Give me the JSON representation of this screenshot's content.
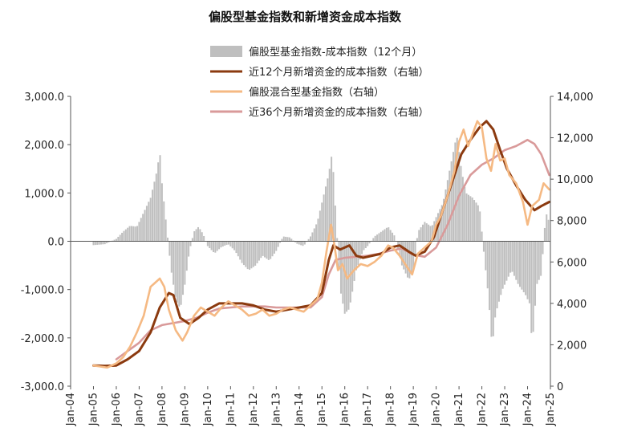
{
  "chart_data": {
    "type": "bar+line",
    "title": "偏股型基金指数和新增资金成本指数",
    "legend": [
      {
        "name": "偏股型基金指数-成本指数（12个月）",
        "kind": "bar",
        "color": "#bfbfbf"
      },
      {
        "name": "近12个月新增资金的成本指数（右轴）",
        "kind": "line",
        "color": "#8b3a0f"
      },
      {
        "name": "偏股混合型基金指数（右轴）",
        "kind": "line",
        "color": "#f5b983"
      },
      {
        "name": "近36个月新增资金的成本指数（右轴）",
        "kind": "line",
        "color": "#d99a9a"
      }
    ],
    "x_ticks": [
      "Jan-04",
      "Jan-05",
      "Jan-06",
      "Jan-07",
      "Jan-08",
      "Jan-09",
      "Jan-10",
      "Jan-11",
      "Jan-12",
      "Jan-13",
      "Jan-14",
      "Jan-15",
      "Jan-16",
      "Jan-17",
      "Jan-18",
      "Jan-19",
      "Jan-20",
      "Jan-21",
      "Jan-22",
      "Jan-23",
      "Jan-24",
      "Jan-25"
    ],
    "x_range": [
      2004.0,
      2025.0
    ],
    "left_axis": {
      "ticks": [
        "-3,000.0",
        "-2,000.0",
        "-1,000.0",
        "0.0",
        "1,000.0",
        "2,000.0",
        "3,000.0"
      ],
      "range": [
        -3000,
        3000
      ]
    },
    "right_axis": {
      "ticks": [
        "0",
        "2,000",
        "4,000",
        "6,000",
        "8,000",
        "10,000",
        "12,000",
        "14,000"
      ],
      "range": [
        0,
        14000
      ]
    },
    "bar_series": {
      "name": "偏股型基金指数-成本指数（12个月）",
      "points": [
        [
          2005.0,
          -80
        ],
        [
          2005.5,
          -60
        ],
        [
          2006.0,
          50
        ],
        [
          2006.3,
          200
        ],
        [
          2006.6,
          320
        ],
        [
          2006.9,
          300
        ],
        [
          2007.2,
          600
        ],
        [
          2007.5,
          900
        ],
        [
          2007.8,
          1500
        ],
        [
          2007.9,
          1900
        ],
        [
          2008.0,
          1200
        ],
        [
          2008.2,
          300
        ],
        [
          2008.4,
          -600
        ],
        [
          2008.6,
          -1200
        ],
        [
          2008.8,
          -1400
        ],
        [
          2009.0,
          -900
        ],
        [
          2009.2,
          -200
        ],
        [
          2009.4,
          200
        ],
        [
          2009.6,
          300
        ],
        [
          2009.8,
          150
        ],
        [
          2010.0,
          -100
        ],
        [
          2010.3,
          -250
        ],
        [
          2010.6,
          -120
        ],
        [
          2010.9,
          -60
        ],
        [
          2011.2,
          -200
        ],
        [
          2011.5,
          -450
        ],
        [
          2011.8,
          -600
        ],
        [
          2012.1,
          -500
        ],
        [
          2012.4,
          -300
        ],
        [
          2012.7,
          -400
        ],
        [
          2013.0,
          -200
        ],
        [
          2013.3,
          100
        ],
        [
          2013.6,
          80
        ],
        [
          2013.9,
          -50
        ],
        [
          2014.2,
          -100
        ],
        [
          2014.5,
          100
        ],
        [
          2014.8,
          400
        ],
        [
          2015.0,
          800
        ],
        [
          2015.3,
          1400
        ],
        [
          2015.45,
          1850
        ],
        [
          2015.6,
          600
        ],
        [
          2015.8,
          -1000
        ],
        [
          2016.0,
          -1500
        ],
        [
          2016.2,
          -1400
        ],
        [
          2016.5,
          -600
        ],
        [
          2016.8,
          -200
        ],
        [
          2017.0,
          -100
        ],
        [
          2017.3,
          100
        ],
        [
          2017.6,
          200
        ],
        [
          2017.9,
          300
        ],
        [
          2018.2,
          100
        ],
        [
          2018.5,
          -500
        ],
        [
          2018.8,
          -800
        ],
        [
          2019.0,
          -600
        ],
        [
          2019.2,
          200
        ],
        [
          2019.5,
          400
        ],
        [
          2019.8,
          300
        ],
        [
          2020.0,
          500
        ],
        [
          2020.3,
          800
        ],
        [
          2020.6,
          1500
        ],
        [
          2020.9,
          2200
        ],
        [
          2021.1,
          1500
        ],
        [
          2021.3,
          1000
        ],
        [
          2021.6,
          900
        ],
        [
          2021.9,
          700
        ],
        [
          2022.1,
          -300
        ],
        [
          2022.3,
          -1200
        ],
        [
          2022.45,
          -2200
        ],
        [
          2022.6,
          -1500
        ],
        [
          2022.9,
          -1000
        ],
        [
          2023.1,
          -800
        ],
        [
          2023.3,
          -600
        ],
        [
          2023.6,
          -900
        ],
        [
          2023.9,
          -1100
        ],
        [
          2024.1,
          -1300
        ],
        [
          2024.2,
          -2200
        ],
        [
          2024.4,
          -900
        ],
        [
          2024.6,
          -700
        ],
        [
          2024.8,
          600
        ],
        [
          2024.95,
          400
        ]
      ]
    },
    "line_series": [
      {
        "name": "近12个月新增资金的成本指数（右轴）",
        "color": "#8b3a0f",
        "points": [
          [
            2005.0,
            1000
          ],
          [
            2005.5,
            980
          ],
          [
            2006.0,
            1000
          ],
          [
            2006.5,
            1300
          ],
          [
            2007.0,
            1700
          ],
          [
            2007.5,
            2600
          ],
          [
            2007.9,
            3800
          ],
          [
            2008.3,
            4500
          ],
          [
            2008.5,
            4400
          ],
          [
            2008.8,
            3300
          ],
          [
            2009.2,
            3000
          ],
          [
            2009.6,
            3300
          ],
          [
            2010.0,
            3700
          ],
          [
            2010.5,
            4000
          ],
          [
            2011.0,
            4000
          ],
          [
            2011.5,
            4000
          ],
          [
            2012.0,
            3900
          ],
          [
            2012.5,
            3700
          ],
          [
            2013.0,
            3600
          ],
          [
            2013.5,
            3700
          ],
          [
            2014.0,
            3800
          ],
          [
            2014.5,
            3900
          ],
          [
            2015.0,
            4500
          ],
          [
            2015.3,
            6100
          ],
          [
            2015.5,
            6800
          ],
          [
            2015.8,
            6600
          ],
          [
            2016.2,
            6800
          ],
          [
            2016.5,
            6300
          ],
          [
            2016.8,
            6200
          ],
          [
            2017.2,
            6300
          ],
          [
            2017.6,
            6400
          ],
          [
            2018.0,
            6700
          ],
          [
            2018.4,
            6800
          ],
          [
            2018.8,
            6500
          ],
          [
            2019.1,
            6300
          ],
          [
            2019.5,
            6500
          ],
          [
            2019.9,
            7200
          ],
          [
            2020.2,
            8200
          ],
          [
            2020.5,
            9200
          ],
          [
            2020.8,
            10200
          ],
          [
            2021.1,
            11200
          ],
          [
            2021.5,
            11900
          ],
          [
            2021.9,
            12500
          ],
          [
            2022.2,
            12800
          ],
          [
            2022.5,
            12400
          ],
          [
            2022.8,
            11400
          ],
          [
            2023.1,
            10500
          ],
          [
            2023.5,
            9700
          ],
          [
            2023.9,
            9000
          ],
          [
            2024.3,
            8500
          ],
          [
            2024.6,
            8700
          ],
          [
            2024.95,
            8900
          ]
        ]
      },
      {
        "name": "偏股混合型基金指数（右轴）",
        "color": "#f5b983",
        "points": [
          [
            2005.0,
            1000
          ],
          [
            2005.3,
            950
          ],
          [
            2005.6,
            900
          ],
          [
            2006.0,
            1100
          ],
          [
            2006.3,
            1400
          ],
          [
            2006.6,
            1900
          ],
          [
            2006.9,
            2600
          ],
          [
            2007.2,
            3400
          ],
          [
            2007.5,
            4800
          ],
          [
            2007.7,
            5000
          ],
          [
            2007.9,
            5200
          ],
          [
            2008.1,
            4800
          ],
          [
            2008.3,
            3700
          ],
          [
            2008.6,
            2700
          ],
          [
            2008.9,
            2200
          ],
          [
            2009.1,
            2600
          ],
          [
            2009.4,
            3400
          ],
          [
            2009.7,
            3800
          ],
          [
            2010.0,
            3600
          ],
          [
            2010.3,
            3400
          ],
          [
            2010.6,
            3800
          ],
          [
            2010.9,
            4100
          ],
          [
            2011.2,
            3900
          ],
          [
            2011.5,
            3700
          ],
          [
            2011.8,
            3400
          ],
          [
            2012.1,
            3500
          ],
          [
            2012.4,
            3700
          ],
          [
            2012.7,
            3400
          ],
          [
            2013.0,
            3500
          ],
          [
            2013.3,
            3700
          ],
          [
            2013.6,
            3800
          ],
          [
            2013.9,
            3700
          ],
          [
            2014.2,
            3600
          ],
          [
            2014.5,
            3900
          ],
          [
            2014.8,
            4200
          ],
          [
            2015.0,
            5000
          ],
          [
            2015.2,
            6500
          ],
          [
            2015.4,
            7800
          ],
          [
            2015.55,
            6800
          ],
          [
            2015.7,
            5600
          ],
          [
            2015.9,
            5900
          ],
          [
            2016.1,
            5200
          ],
          [
            2016.4,
            5600
          ],
          [
            2016.7,
            5900
          ],
          [
            2017.0,
            5800
          ],
          [
            2017.3,
            6000
          ],
          [
            2017.6,
            6300
          ],
          [
            2017.9,
            6800
          ],
          [
            2018.1,
            6700
          ],
          [
            2018.4,
            6300
          ],
          [
            2018.7,
            5800
          ],
          [
            2018.95,
            5400
          ],
          [
            2019.2,
            6400
          ],
          [
            2019.5,
            6700
          ],
          [
            2019.8,
            7000
          ],
          [
            2020.0,
            7800
          ],
          [
            2020.2,
            8200
          ],
          [
            2020.5,
            9200
          ],
          [
            2020.8,
            10400
          ],
          [
            2021.0,
            11800
          ],
          [
            2021.2,
            12400
          ],
          [
            2021.4,
            11600
          ],
          [
            2021.6,
            12200
          ],
          [
            2021.8,
            12800
          ],
          [
            2022.0,
            12500
          ],
          [
            2022.2,
            11000
          ],
          [
            2022.4,
            10400
          ],
          [
            2022.6,
            11700
          ],
          [
            2022.8,
            10900
          ],
          [
            2023.0,
            11000
          ],
          [
            2023.2,
            10200
          ],
          [
            2023.5,
            9800
          ],
          [
            2023.8,
            8900
          ],
          [
            2024.0,
            7800
          ],
          [
            2024.2,
            8700
          ],
          [
            2024.5,
            9000
          ],
          [
            2024.7,
            9800
          ],
          [
            2024.95,
            9500
          ]
        ]
      },
      {
        "name": "近36个月新增资金的成本指数（右轴）",
        "color": "#d99a9a",
        "points": [
          [
            2006.0,
            1300
          ],
          [
            2006.5,
            1700
          ],
          [
            2007.0,
            2100
          ],
          [
            2007.5,
            2700
          ],
          [
            2008.0,
            2950
          ],
          [
            2008.5,
            3050
          ],
          [
            2009.0,
            3150
          ],
          [
            2009.5,
            3300
          ],
          [
            2010.0,
            3550
          ],
          [
            2010.5,
            3750
          ],
          [
            2011.0,
            3800
          ],
          [
            2011.5,
            3850
          ],
          [
            2012.0,
            3850
          ],
          [
            2012.5,
            3850
          ],
          [
            2013.0,
            3800
          ],
          [
            2013.5,
            3800
          ],
          [
            2014.0,
            3800
          ],
          [
            2014.5,
            3800
          ],
          [
            2015.0,
            4300
          ],
          [
            2015.3,
            5400
          ],
          [
            2015.6,
            6100
          ],
          [
            2016.0,
            6200
          ],
          [
            2016.5,
            6250
          ],
          [
            2017.0,
            6300
          ],
          [
            2017.5,
            6400
          ],
          [
            2018.0,
            6550
          ],
          [
            2018.5,
            6650
          ],
          [
            2019.0,
            6350
          ],
          [
            2019.5,
            6250
          ],
          [
            2020.0,
            6700
          ],
          [
            2020.5,
            7800
          ],
          [
            2021.0,
            9200
          ],
          [
            2021.5,
            10200
          ],
          [
            2022.0,
            10700
          ],
          [
            2022.5,
            11000
          ],
          [
            2023.0,
            11400
          ],
          [
            2023.5,
            11600
          ],
          [
            2024.0,
            11900
          ],
          [
            2024.3,
            11700
          ],
          [
            2024.6,
            11200
          ],
          [
            2024.95,
            10200
          ]
        ]
      }
    ]
  }
}
